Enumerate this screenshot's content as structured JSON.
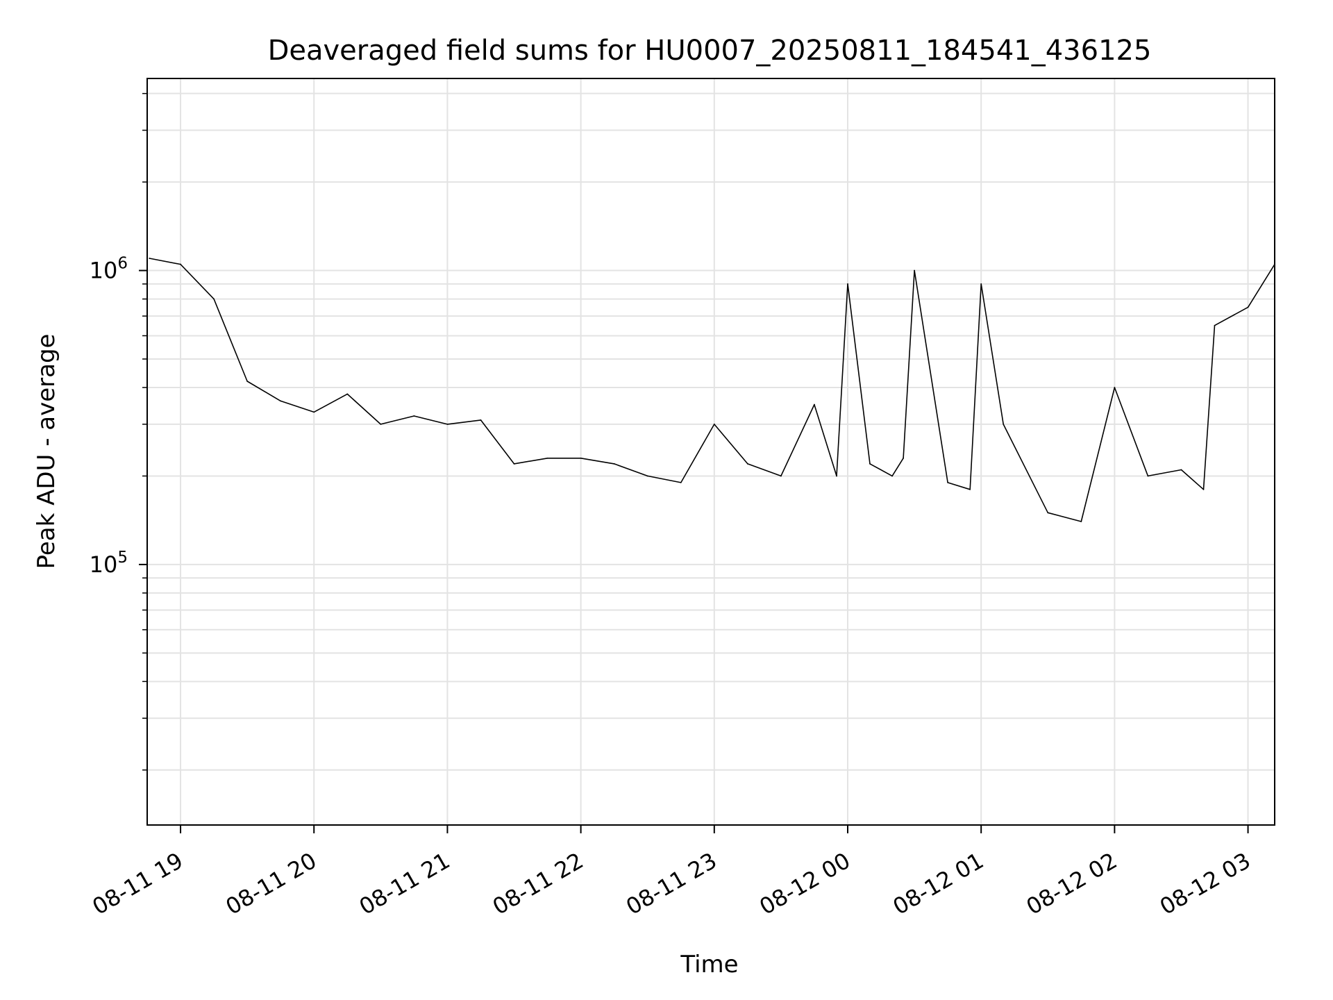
{
  "chart_data": {
    "type": "line",
    "title": "Deaveraged field sums for HU0007_20250811_184541_436125",
    "xlabel": "Time",
    "ylabel": "Peak ADU - average",
    "x_scale": "time",
    "y_scale": "log",
    "xlim": [
      "2025-08-11 18:45",
      "2025-08-12 03:12"
    ],
    "ylim": [
      13000,
      4500000
    ],
    "x_ticks": [
      "08-11 19",
      "08-11 20",
      "08-11 21",
      "08-11 22",
      "08-11 23",
      "08-12 00",
      "08-12 01",
      "08-12 02",
      "08-12 03"
    ],
    "x_tick_times": [
      "2025-08-11 19:00",
      "2025-08-11 20:00",
      "2025-08-11 21:00",
      "2025-08-11 22:00",
      "2025-08-11 23:00",
      "2025-08-12 00:00",
      "2025-08-12 01:00",
      "2025-08-12 02:00",
      "2025-08-12 03:00"
    ],
    "y_ticks": [
      {
        "base": "10",
        "exp": "5",
        "value": 100000
      },
      {
        "base": "10",
        "exp": "6",
        "value": 1000000
      }
    ],
    "grid": true,
    "line_color": "#000000",
    "series": [
      {
        "x": [
          "2025-08-11 18:46",
          "2025-08-11 19:00",
          "2025-08-11 19:15",
          "2025-08-11 19:30",
          "2025-08-11 19:45",
          "2025-08-11 20:00",
          "2025-08-11 20:15",
          "2025-08-11 20:30",
          "2025-08-11 20:45",
          "2025-08-11 21:00",
          "2025-08-11 21:15",
          "2025-08-11 21:30",
          "2025-08-11 21:45",
          "2025-08-11 22:00",
          "2025-08-11 22:15",
          "2025-08-11 22:30",
          "2025-08-11 22:45",
          "2025-08-11 23:00",
          "2025-08-11 23:15",
          "2025-08-11 23:30",
          "2025-08-11 23:45",
          "2025-08-11 23:55",
          "2025-08-12 00:00",
          "2025-08-12 00:10",
          "2025-08-12 00:20",
          "2025-08-12 00:25",
          "2025-08-12 00:30",
          "2025-08-12 00:45",
          "2025-08-12 00:55",
          "2025-08-12 01:00",
          "2025-08-12 01:10",
          "2025-08-12 01:30",
          "2025-08-12 01:45",
          "2025-08-12 02:00",
          "2025-08-12 02:15",
          "2025-08-12 02:30",
          "2025-08-12 02:40",
          "2025-08-12 02:45",
          "2025-08-12 03:00",
          "2025-08-12 03:12"
        ],
        "y": [
          1100000,
          1050000,
          800000,
          420000,
          360000,
          330000,
          380000,
          300000,
          320000,
          300000,
          310000,
          220000,
          230000,
          230000,
          220000,
          200000,
          190000,
          300000,
          220000,
          200000,
          350000,
          200000,
          900000,
          220000,
          200000,
          230000,
          1000000,
          190000,
          180000,
          900000,
          300000,
          150000,
          140000,
          400000,
          200000,
          210000,
          180000,
          650000,
          750000,
          1050000
        ]
      }
    ]
  }
}
